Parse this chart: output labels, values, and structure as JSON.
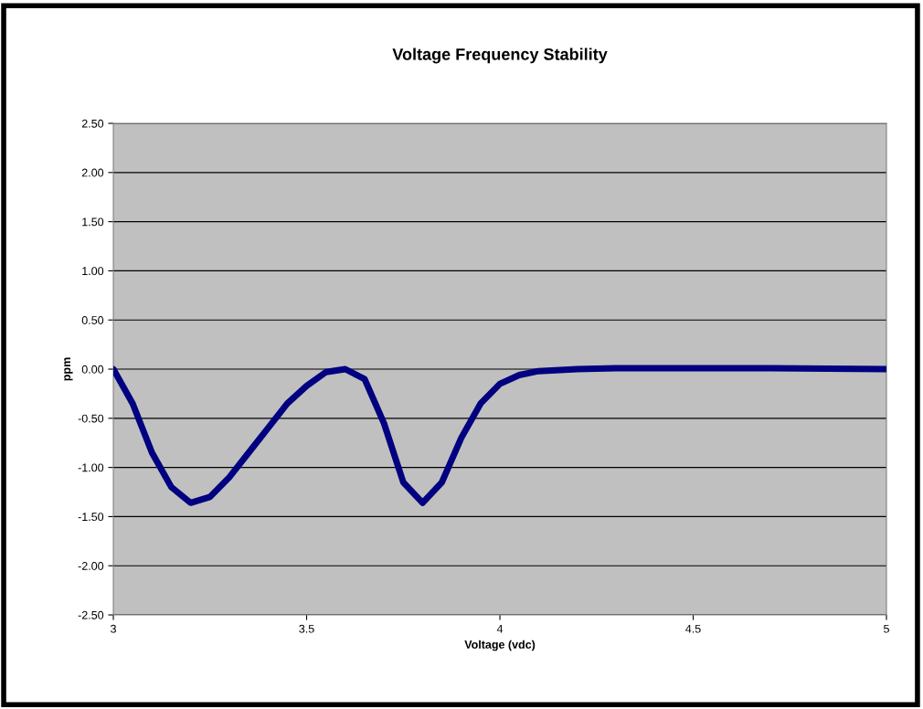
{
  "chart_data": {
    "type": "line",
    "title": "Voltage Frequency Stability",
    "xlabel": "Voltage (vdc)",
    "ylabel": "ppm",
    "x": [
      3.0,
      3.05,
      3.1,
      3.15,
      3.2,
      3.25,
      3.3,
      3.35,
      3.4,
      3.45,
      3.5,
      3.55,
      3.6,
      3.65,
      3.7,
      3.75,
      3.8,
      3.85,
      3.9,
      3.95,
      4.0,
      4.05,
      4.1,
      4.2,
      4.3,
      4.5,
      4.7,
      5.0
    ],
    "series": [
      {
        "color": "#000080",
        "values": [
          0.0,
          -0.35,
          -0.85,
          -1.2,
          -1.36,
          -1.3,
          -1.1,
          -0.85,
          -0.6,
          -0.35,
          -0.17,
          -0.03,
          0.0,
          -0.1,
          -0.55,
          -1.15,
          -1.36,
          -1.15,
          -0.7,
          -0.35,
          -0.15,
          -0.06,
          -0.02,
          0.0,
          0.01,
          0.01,
          0.01,
          0.0
        ]
      }
    ],
    "xlim": [
      3,
      5
    ],
    "xticks": [
      3,
      3.5,
      4,
      4.5,
      5
    ],
    "ylim": [
      -2.5,
      2.5
    ],
    "yticks": [
      {
        "value": -2.5,
        "label": "-2.50"
      },
      {
        "value": -2.0,
        "label": "-2.00"
      },
      {
        "value": -1.5,
        "label": "-1.50"
      },
      {
        "value": -1.0,
        "label": "-1.00"
      },
      {
        "value": -0.5,
        "label": "-0.50"
      },
      {
        "value": 0.0,
        "label": "0.00"
      },
      {
        "value": 0.5,
        "label": "0.50"
      },
      {
        "value": 1.0,
        "label": "1.00"
      },
      {
        "value": 1.5,
        "label": "1.50"
      },
      {
        "value": 2.0,
        "label": "2.00"
      },
      {
        "value": 2.5,
        "label": "2.50"
      }
    ],
    "grid": "y",
    "marker": "none",
    "line_style": "solid"
  }
}
